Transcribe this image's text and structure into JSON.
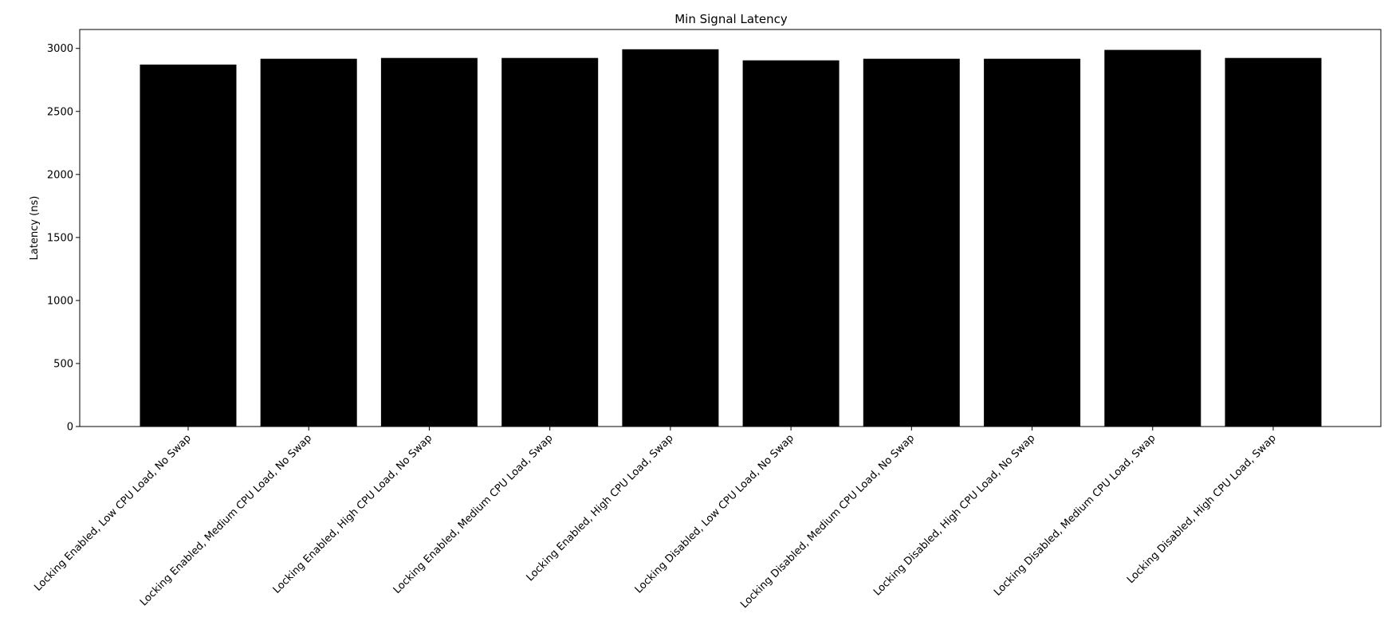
{
  "chart_data": {
    "type": "bar",
    "title": "Min Signal Latency",
    "xlabel": "",
    "ylabel": "Latency (ns)",
    "categories": [
      "Locking Enabled, Low CPU Load, No Swap",
      "Locking Enabled, Medium CPU Load, No Swap",
      "Locking Enabled, High CPU Load, No Swap",
      "Locking Enabled, Medium CPU Load, Swap",
      "Locking Enabled, High CPU Load, Swap",
      "Locking Disabled, Low CPU Load, No Swap",
      "Locking Disabled, Medium CPU Load, No Swap",
      "Locking Disabled, High CPU Load, No Swap",
      "Locking Disabled, Medium CPU Load, Swap",
      "Locking Disabled, High CPU Load, Swap"
    ],
    "values": [
      2872,
      2918,
      2924,
      2924,
      2993,
      2905,
      2918,
      2918,
      2988,
      2924
    ],
    "ylim": [
      0,
      3150
    ],
    "yticks": [
      0,
      500,
      1000,
      1500,
      2000,
      2500,
      3000
    ],
    "grid": false,
    "colors": {
      "bar": "#000000",
      "axis": "#000000",
      "background": "#ffffff"
    }
  }
}
